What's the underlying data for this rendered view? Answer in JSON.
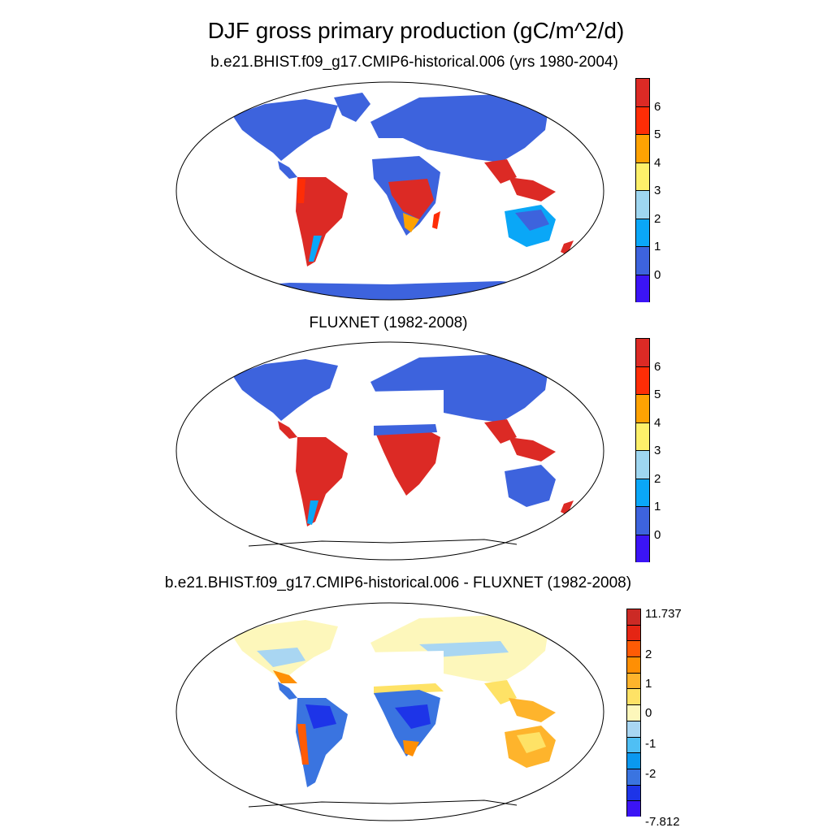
{
  "title": "DJF gross primary production (gC/m^2/d)",
  "panels": [
    {
      "title": "b.e21.BHIST.f09_g17.CMIP6-historical.006 (yrs 1980-2004)",
      "colorbar": {
        "colors": [
          "#3b14f5",
          "#3d63dd",
          "#0aa7f7",
          "#9ed6f0",
          "#fdf06a",
          "#fea202",
          "#fe2d06",
          "#dc2a25"
        ],
        "labels": [
          "0",
          "1",
          "2",
          "3",
          "4",
          "5",
          "6"
        ]
      }
    },
    {
      "title": "FLUXNET (1982-2008)",
      "colorbar": {
        "colors": [
          "#3b14f5",
          "#3d63dd",
          "#0aa7f7",
          "#9ed6f0",
          "#fdf06a",
          "#fea202",
          "#fe2d06",
          "#dc2a25"
        ],
        "labels": [
          "0",
          "1",
          "2",
          "3",
          "4",
          "5",
          "6"
        ]
      }
    },
    {
      "title": "b.e21.BHIST.f09_g17.CMIP6-historical.006 - FLUXNET (1982-2008)",
      "colorbar": {
        "colors": [
          "#3b14f5",
          "#1d34e8",
          "#3a74e0",
          "#0a98ef",
          "#4fbff4",
          "#a9d6f2",
          "#fdf7bb",
          "#fee266",
          "#feb42c",
          "#fe8f04",
          "#ff5b05",
          "#e52514",
          "#cc2a25"
        ],
        "labels": [
          "11.737",
          "2",
          "1",
          "0",
          "-1",
          "-2",
          "-7.812"
        ]
      }
    }
  ],
  "colors": {
    "land_low": "#3d63dd",
    "land_high": "#dc2a25",
    "diff_neutral": "#fdf7bb",
    "diff_negative": "#3b14f5",
    "missing": "#ffffff"
  }
}
